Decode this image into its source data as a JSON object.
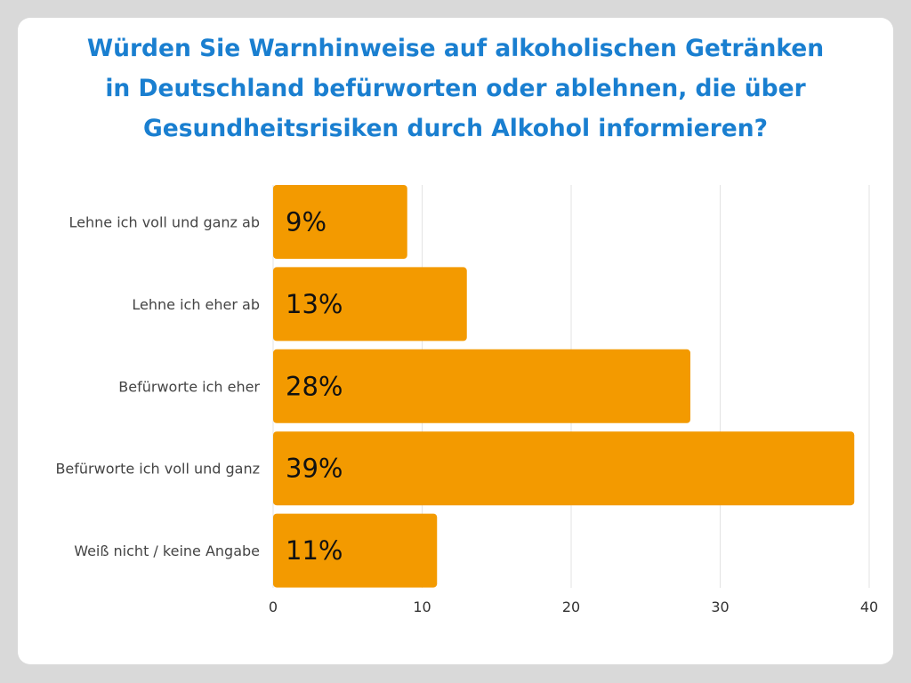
{
  "chart_data": {
    "type": "bar",
    "orientation": "horizontal",
    "title_lines": [
      "Würden Sie Warnhinweise auf alkoholischen Getränken",
      "in Deutschland befürworten oder ablehnen, die über",
      "Gesundheitsrisiken durch Alkohol informieren?"
    ],
    "categories": [
      "Lehne ich voll und ganz ab",
      "Lehne ich eher ab",
      "Befürworte ich eher",
      "Befürworte ich voll und ganz",
      "Weiß nicht / keine Angabe"
    ],
    "values": [
      9,
      13,
      28,
      39,
      11
    ],
    "data_labels": [
      "9%",
      "13%",
      "28%",
      "39%",
      "11%"
    ],
    "xlim": [
      0,
      40
    ],
    "x_ticks": [
      0,
      10,
      20,
      30,
      40
    ],
    "grid": true,
    "bar_color": "#f39a00",
    "title_color": "#1a7fd0"
  }
}
